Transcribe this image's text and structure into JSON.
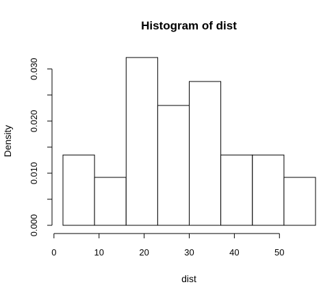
{
  "chart_data": {
    "type": "bar",
    "title": "Histogram of dist",
    "xlabel": "dist",
    "ylabel": "Density",
    "bin_edges": [
      2,
      9,
      16,
      23,
      30,
      37,
      44,
      51,
      58
    ],
    "values": [
      0.0135,
      0.0092,
      0.0322,
      0.023,
      0.0276,
      0.0135,
      0.0135,
      0.0092
    ],
    "xlim": [
      2,
      58
    ],
    "ylim": [
      0,
      0.033
    ],
    "x_ticks": [
      0,
      10,
      20,
      30,
      40,
      50
    ],
    "y_ticks": [
      "0.000",
      "0.010",
      "0.020",
      "0.030"
    ],
    "grid": false,
    "bar_fill": "#ffffff",
    "bar_stroke": "#000000"
  }
}
